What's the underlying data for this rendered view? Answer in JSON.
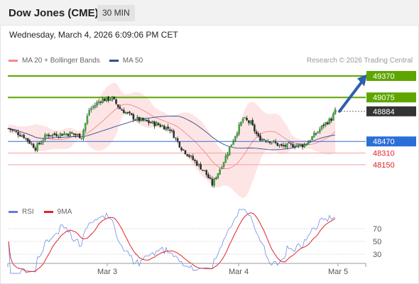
{
  "header": {
    "title": "Dow Jones (CME)",
    "timeframe": "30 MIN"
  },
  "datetime": "Wednesday, March 4, 2026 6:09:06 PM CET",
  "legend": {
    "bollinger": {
      "label": "MA 20 + Bollinger Bands",
      "color": "#f08a8a"
    },
    "ma50": {
      "label": "MA 50",
      "color": "#2f4f8f"
    }
  },
  "credit": "Research © 2026 Trading Central",
  "rsi_legend": {
    "rsi": {
      "label": "RSI",
      "color": "#5b7fe0"
    },
    "ma9": {
      "label": "9MA",
      "color": "#e0242b"
    }
  },
  "price_levels": [
    {
      "value": "49370",
      "kind": "resistance",
      "color": "#5ea500"
    },
    {
      "value": "49075",
      "kind": "resistance",
      "color": "#5ea500"
    },
    {
      "value": "48884",
      "kind": "last",
      "color": "#333333"
    },
    {
      "value": "48470",
      "kind": "pivot",
      "color": "#2a6fd6"
    },
    {
      "value": "48310",
      "kind": "support",
      "color": "#e0242b"
    },
    {
      "value": "48150",
      "kind": "support",
      "color": "#e0242b"
    }
  ],
  "rsi_levels": [
    "70",
    "50",
    "30"
  ],
  "x_labels": [
    "Mar 3",
    "Mar 4",
    "Mar 5"
  ],
  "chart_data": {
    "type": "candlestick",
    "title": "Dow Jones (CME)",
    "interval": "30 MIN",
    "overlays": [
      "MA 20 + Bollinger Bands",
      "MA 50"
    ],
    "ylim": [
      47820,
      49430
    ],
    "last_price": 48884,
    "pivot": 48470,
    "resistances": [
      49075,
      49370
    ],
    "supports": [
      48310,
      48150
    ],
    "projection_target": 49370,
    "rsi": {
      "levels": [
        70,
        50,
        30
      ],
      "ma_period": 9
    },
    "x_ticks": [
      "Mar 3",
      "Mar 4",
      "Mar 5"
    ]
  }
}
